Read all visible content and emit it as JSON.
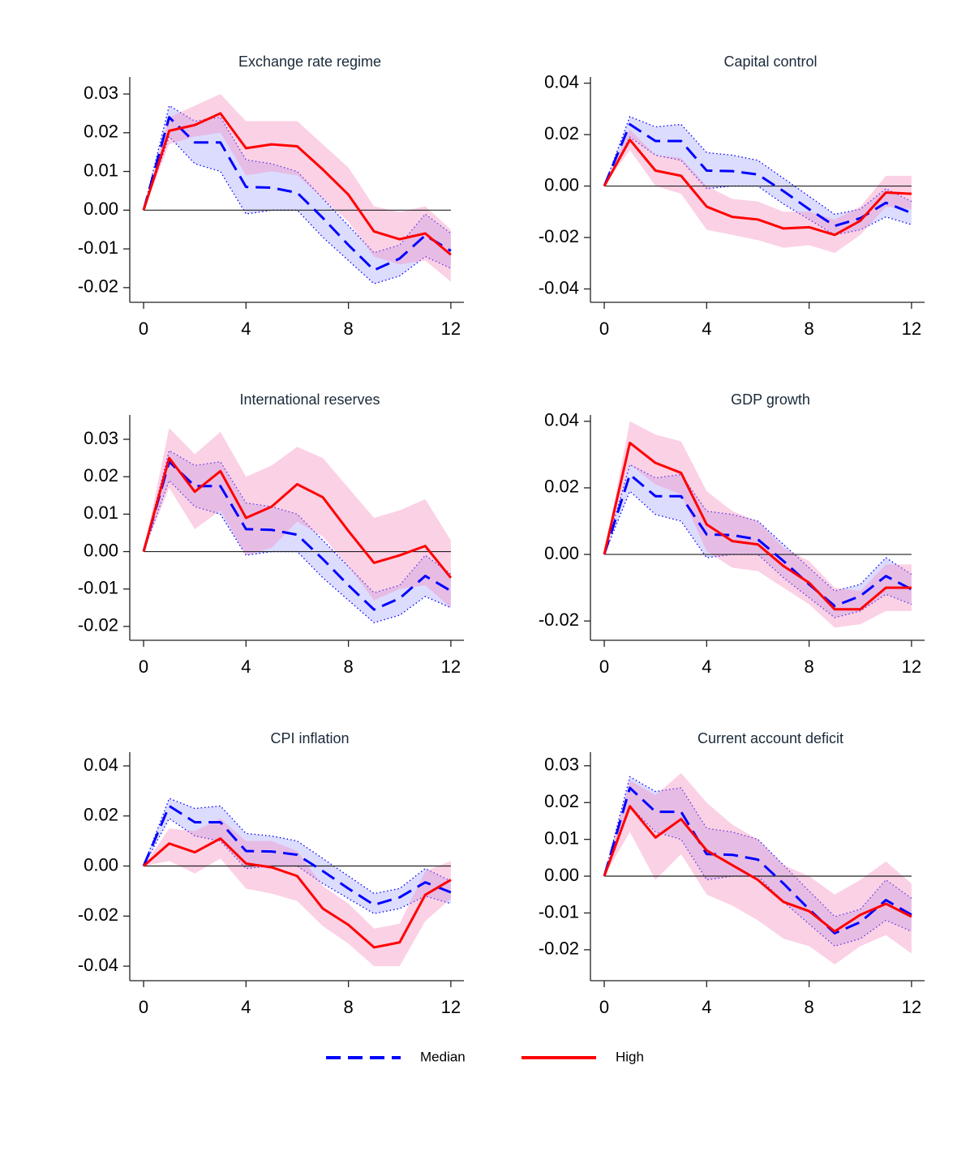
{
  "chart_data": [
    {
      "type": "line",
      "title": "Exchange rate regime",
      "x": [
        0,
        1,
        2,
        3,
        4,
        5,
        6,
        7,
        8,
        9,
        10,
        11,
        12
      ],
      "xlim": [
        -0.54,
        12.51
      ],
      "xticks": [
        0,
        4,
        8,
        12
      ],
      "ylim": [
        -0.0238,
        0.0344
      ],
      "yticks": [
        0.03,
        0.02,
        0.01,
        {
          "value": 0,
          "label": "0.00"
        },
        -0.01,
        -0.02
      ],
      "hline": 0,
      "series": [
        {
          "values": [
            0,
            0.024,
            0.0175,
            0.0175,
            0.006,
            0.0058,
            0.0045,
            -0.002,
            -0.009,
            -0.0155,
            -0.0125,
            -0.0065,
            -0.0105
          ],
          "lower": [
            0,
            0.019,
            0.012,
            0.01,
            -0.001,
            0,
            0,
            -0.007,
            -0.013,
            -0.019,
            -0.017,
            -0.012,
            -0.015
          ],
          "upper": [
            0,
            0.027,
            0.023,
            0.024,
            0.013,
            0.012,
            0.01,
            0.003,
            -0.004,
            -0.011,
            -0.009,
            -0.001,
            -0.006
          ]
        },
        {
          "values": [
            0,
            0.0205,
            0.022,
            0.025,
            0.016,
            0.017,
            0.0165,
            0.0105,
            0.004,
            -0.0055,
            -0.0075,
            -0.006,
            -0.0115
          ],
          "lower": [
            0,
            0.017,
            0.019,
            0.02,
            0.009,
            0.01,
            0.009,
            0.003,
            -0.003,
            -0.012,
            -0.014,
            -0.013,
            -0.0185
          ],
          "upper": [
            0,
            0.024,
            0.027,
            0.03,
            0.023,
            0.023,
            0.023,
            0.017,
            0.011,
            0.001,
            -0.0005,
            0.001,
            -0.005
          ]
        }
      ]
    },
    {
      "type": "line",
      "title": "Capital control",
      "x": [
        0,
        1,
        2,
        3,
        4,
        5,
        6,
        7,
        8,
        9,
        10,
        11,
        12
      ],
      "xlim": [
        -0.54,
        12.51
      ],
      "xticks": [
        0,
        4,
        8,
        12
      ],
      "ylim": [
        -0.0452,
        0.0424
      ],
      "yticks": [
        0.04,
        0.02,
        {
          "value": 0,
          "label": "0.00"
        },
        -0.02,
        -0.04
      ],
      "hline": 0,
      "series": [
        {
          "values": [
            0,
            0.024,
            0.0175,
            0.0175,
            0.006,
            0.0058,
            0.0045,
            -0.002,
            -0.009,
            -0.0155,
            -0.0125,
            -0.0065,
            -0.0105
          ],
          "lower": [
            0,
            0.019,
            0.012,
            0.01,
            -0.001,
            0,
            0,
            -0.007,
            -0.013,
            -0.019,
            -0.017,
            -0.012,
            -0.015
          ],
          "upper": [
            0,
            0.027,
            0.023,
            0.024,
            0.013,
            0.012,
            0.01,
            0.003,
            -0.004,
            -0.011,
            -0.009,
            -0.001,
            -0.006
          ]
        },
        {
          "values": [
            0,
            0.018,
            0.006,
            0.004,
            -0.008,
            -0.012,
            -0.013,
            -0.0165,
            -0.016,
            -0.019,
            -0.0135,
            -0.0025,
            -0.003
          ],
          "lower": [
            0,
            0.014,
            0,
            -0.003,
            -0.017,
            -0.019,
            -0.021,
            -0.024,
            -0.023,
            -0.026,
            -0.019,
            -0.008,
            -0.009
          ],
          "upper": [
            0,
            0.022,
            0.012,
            0.011,
            0,
            -0.005,
            -0.006,
            -0.01,
            -0.01,
            -0.013,
            -0.008,
            0.004,
            0.004
          ]
        }
      ]
    },
    {
      "type": "line",
      "title": "International reserves",
      "x": [
        0,
        1,
        2,
        3,
        4,
        5,
        6,
        7,
        8,
        9,
        10,
        11,
        12
      ],
      "xlim": [
        -0.54,
        12.51
      ],
      "xticks": [
        0,
        4,
        8,
        12
      ],
      "ylim": [
        -0.0237,
        0.0365
      ],
      "yticks": [
        0.03,
        0.02,
        0.01,
        {
          "value": 0,
          "label": "0.00"
        },
        -0.01,
        -0.02
      ],
      "hline": 0,
      "series": [
        {
          "values": [
            0,
            0.024,
            0.0175,
            0.0175,
            0.006,
            0.0058,
            0.0045,
            -0.002,
            -0.009,
            -0.0155,
            -0.0125,
            -0.0065,
            -0.0105
          ],
          "lower": [
            0,
            0.019,
            0.012,
            0.01,
            -0.001,
            0,
            0,
            -0.007,
            -0.013,
            -0.019,
            -0.017,
            -0.012,
            -0.015
          ],
          "upper": [
            0,
            0.027,
            0.023,
            0.024,
            0.013,
            0.012,
            0.01,
            0.003,
            -0.004,
            -0.011,
            -0.009,
            -0.001,
            -0.006
          ]
        },
        {
          "values": [
            0,
            0.025,
            0.016,
            0.0215,
            0.009,
            0.012,
            0.018,
            0.0145,
            0.0055,
            -0.003,
            -0.001,
            0.0015,
            -0.007
          ],
          "lower": [
            0,
            0.017,
            0.006,
            0.011,
            -0.001,
            0.001,
            0.008,
            0.004,
            -0.004,
            -0.013,
            -0.01,
            -0.009,
            -0.015
          ],
          "upper": [
            0,
            0.033,
            0.026,
            0.032,
            0.02,
            0.023,
            0.028,
            0.025,
            0.017,
            0.009,
            0.011,
            0.014,
            0.003
          ]
        }
      ]
    },
    {
      "type": "line",
      "title": "GDP growth",
      "x": [
        0,
        1,
        2,
        3,
        4,
        5,
        6,
        7,
        8,
        9,
        10,
        11,
        12
      ],
      "xlim": [
        -0.54,
        12.51
      ],
      "xticks": [
        0,
        4,
        8,
        12
      ],
      "ylim": [
        -0.0258,
        0.0419
      ],
      "yticks": [
        0.04,
        0.02,
        {
          "value": 0,
          "label": "0.00"
        },
        -0.02
      ],
      "hline": 0,
      "series": [
        {
          "values": [
            0,
            0.024,
            0.0175,
            0.0175,
            0.006,
            0.0058,
            0.0045,
            -0.002,
            -0.009,
            -0.0155,
            -0.0125,
            -0.0065,
            -0.0105
          ],
          "lower": [
            0,
            0.019,
            0.012,
            0.01,
            -0.001,
            0,
            0,
            -0.007,
            -0.013,
            -0.019,
            -0.017,
            -0.012,
            -0.015
          ],
          "upper": [
            0,
            0.027,
            0.023,
            0.024,
            0.013,
            0.012,
            0.01,
            0.003,
            -0.004,
            -0.011,
            -0.009,
            -0.001,
            -0.006
          ]
        },
        {
          "values": [
            0,
            0.0335,
            0.0275,
            0.0245,
            0.009,
            0.004,
            0.003,
            -0.0035,
            -0.0085,
            -0.0165,
            -0.0165,
            -0.01,
            -0.01
          ],
          "lower": [
            0,
            0.027,
            0.021,
            0.018,
            0.001,
            -0.004,
            -0.005,
            -0.01,
            -0.015,
            -0.022,
            -0.021,
            -0.017,
            -0.017
          ],
          "upper": [
            0,
            0.04,
            0.036,
            0.034,
            0.019,
            0.013,
            0.01,
            0.002,
            -0.002,
            -0.01,
            -0.011,
            -0.003,
            -0.003
          ]
        }
      ]
    },
    {
      "type": "line",
      "title": "CPI inflation",
      "x": [
        0,
        1,
        2,
        3,
        4,
        5,
        6,
        7,
        8,
        9,
        10,
        11,
        12
      ],
      "xlim": [
        -0.54,
        12.51
      ],
      "xticks": [
        0,
        4,
        8,
        12
      ],
      "ylim": [
        -0.0458,
        0.0455
      ],
      "yticks": [
        0.04,
        0.02,
        {
          "value": 0,
          "label": "0.00"
        },
        -0.02,
        -0.04
      ],
      "hline": 0,
      "series": [
        {
          "values": [
            0,
            0.024,
            0.0175,
            0.0175,
            0.006,
            0.0058,
            0.0045,
            -0.002,
            -0.009,
            -0.0155,
            -0.0125,
            -0.0065,
            -0.0105
          ],
          "lower": [
            0,
            0.019,
            0.012,
            0.01,
            -0.001,
            0,
            0,
            -0.007,
            -0.013,
            -0.019,
            -0.017,
            -0.012,
            -0.015
          ],
          "upper": [
            0,
            0.027,
            0.023,
            0.024,
            0.013,
            0.012,
            0.01,
            0.003,
            -0.004,
            -0.011,
            -0.009,
            -0.001,
            -0.006
          ]
        },
        {
          "values": [
            0,
            0.009,
            0.0055,
            0.011,
            0.001,
            -0.0005,
            -0.004,
            -0.017,
            -0.0235,
            -0.0325,
            -0.0305,
            -0.0115,
            -0.0055
          ],
          "lower": [
            0,
            0.002,
            -0.003,
            0.003,
            -0.009,
            -0.011,
            -0.014,
            -0.024,
            -0.031,
            -0.04,
            -0.04,
            -0.022,
            -0.013
          ],
          "upper": [
            0,
            0.015,
            0.014,
            0.019,
            0.01,
            0.01,
            0.006,
            -0.008,
            -0.015,
            -0.025,
            -0.023,
            -0.002,
            0.002
          ]
        }
      ]
    },
    {
      "type": "line",
      "title": "Current account deficit",
      "x": [
        0,
        1,
        2,
        3,
        4,
        5,
        6,
        7,
        8,
        9,
        10,
        11,
        12
      ],
      "xlim": [
        -0.54,
        12.51
      ],
      "xticks": [
        0,
        4,
        8,
        12
      ],
      "ylim": [
        -0.0284,
        0.0337
      ],
      "yticks": [
        0.03,
        0.02,
        0.01,
        {
          "value": 0,
          "label": "0.00"
        },
        -0.01,
        -0.02
      ],
      "hline": 0,
      "series": [
        {
          "values": [
            0,
            0.024,
            0.0175,
            0.0175,
            0.006,
            0.0058,
            0.0045,
            -0.002,
            -0.009,
            -0.0155,
            -0.0125,
            -0.0065,
            -0.0105
          ],
          "lower": [
            0,
            0.019,
            0.012,
            0.01,
            -0.001,
            0,
            0,
            -0.007,
            -0.013,
            -0.019,
            -0.017,
            -0.012,
            -0.015
          ],
          "upper": [
            0,
            0.027,
            0.023,
            0.024,
            0.013,
            0.012,
            0.01,
            0.003,
            -0.004,
            -0.011,
            -0.009,
            -0.001,
            -0.006
          ]
        },
        {
          "values": [
            0,
            0.019,
            0.0105,
            0.0155,
            0.007,
            0.003,
            -0.001,
            -0.007,
            -0.0095,
            -0.015,
            -0.0105,
            -0.0075,
            -0.011
          ],
          "lower": [
            0,
            0.012,
            -0.001,
            0.006,
            -0.005,
            -0.008,
            -0.012,
            -0.017,
            -0.019,
            -0.024,
            -0.019,
            -0.016,
            -0.021
          ],
          "upper": [
            0,
            0.026,
            0.022,
            0.028,
            0.02,
            0.014,
            0.01,
            0.003,
            0,
            -0.005,
            -0.001,
            0.004,
            -0.002
          ]
        }
      ]
    }
  ],
  "legend": {
    "entries": [
      {
        "name": "Median",
        "color": "#0000ff",
        "band_color": "#a8a8ff",
        "dashed": true,
        "band_edges": true
      },
      {
        "name": "High",
        "color": "#ff0000",
        "band_color": "#f58cbe",
        "dashed": false,
        "band_edges": false
      }
    ]
  }
}
